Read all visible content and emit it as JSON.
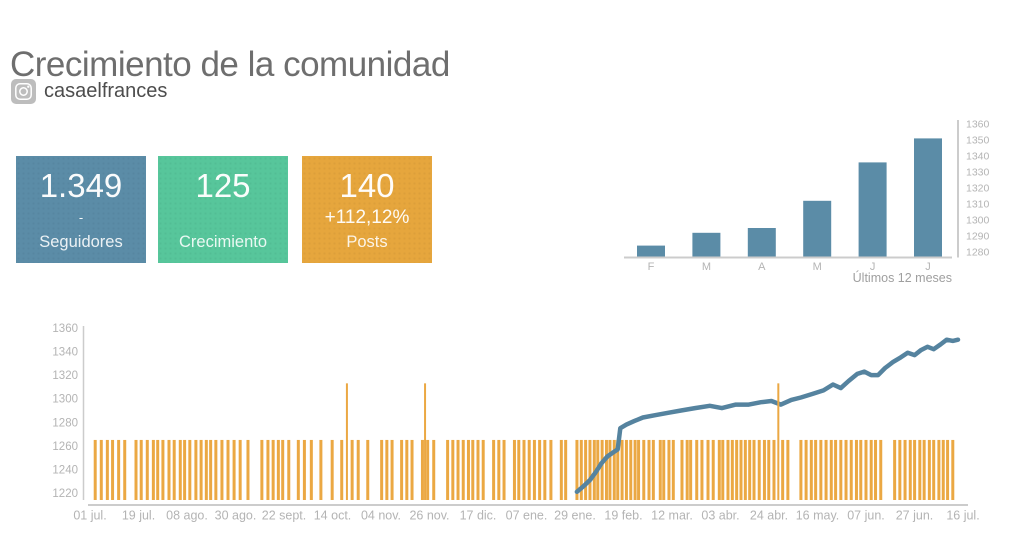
{
  "header": {
    "title": "Crecimiento de la comunidad",
    "account": "casaelfrances"
  },
  "stats": [
    {
      "value": "1.349",
      "sub": "-",
      "label": "Seguidores",
      "color": "#5b8ca7"
    },
    {
      "value": "125",
      "sub": "",
      "label": "Crecimiento",
      "color": "#57c69b"
    },
    {
      "value": "140",
      "sub": "+112,12%",
      "label": "Posts",
      "color": "#e6a63d"
    }
  ],
  "colors": {
    "bar_blue": "#5b8ca7",
    "line_blue": "#55839f",
    "post_orange": "#eba843",
    "axis_gray": "#cccccc",
    "tick_text": "#b4b4b4",
    "footer_text": "#9f9f9f"
  },
  "chart_data": [
    {
      "id": "monthly_followers",
      "type": "bar",
      "title": "Últimos 12 meses",
      "categories": [
        "F",
        "M",
        "A",
        "M",
        "J",
        "J"
      ],
      "values": [
        1284,
        1292,
        1295,
        1312,
        1336,
        1351
      ],
      "ylim": [
        1280,
        1360
      ],
      "yticks": [
        1280,
        1290,
        1300,
        1310,
        1320,
        1330,
        1340,
        1350,
        1360
      ],
      "axis_side": "right",
      "grid": false,
      "bar_color": "#5b8ca7"
    },
    {
      "id": "followers_and_posts_daily",
      "type": "mixed",
      "xticklabels": [
        "01 jul.",
        "19 jul.",
        "08 ago.",
        "30 ago.",
        "22 sept.",
        "14 oct.",
        "04 nov.",
        "26 nov.",
        "17 dic.",
        "07 ene.",
        "29 ene.",
        "19 feb.",
        "12 mar.",
        "03 abr.",
        "24 abr.",
        "16 may.",
        "07 jun.",
        "27 jun.",
        "16 jul."
      ],
      "ylim": [
        1220,
        1360
      ],
      "yticks": [
        1220,
        1240,
        1260,
        1280,
        1300,
        1320,
        1340,
        1360
      ],
      "grid": false,
      "series": [
        {
          "name": "Seguidores",
          "type": "line",
          "color": "#55839f",
          "points": [
            [
              0.561,
              1221
            ],
            [
              0.569,
              1226
            ],
            [
              0.576,
              1231
            ],
            [
              0.583,
              1238
            ],
            [
              0.589,
              1245
            ],
            [
              0.596,
              1251
            ],
            [
              0.602,
              1254
            ],
            [
              0.608,
              1257
            ],
            [
              0.611,
              1275
            ],
            [
              0.618,
              1278
            ],
            [
              0.627,
              1281
            ],
            [
              0.637,
              1284
            ],
            [
              0.651,
              1286
            ],
            [
              0.666,
              1288
            ],
            [
              0.681,
              1290
            ],
            [
              0.697,
              1292
            ],
            [
              0.714,
              1294
            ],
            [
              0.728,
              1292
            ],
            [
              0.744,
              1295
            ],
            [
              0.759,
              1295
            ],
            [
              0.773,
              1297
            ],
            [
              0.785,
              1298
            ],
            [
              0.796,
              1295
            ],
            [
              0.808,
              1299
            ],
            [
              0.819,
              1301
            ],
            [
              0.832,
              1304
            ],
            [
              0.845,
              1307
            ],
            [
              0.856,
              1312
            ],
            [
              0.865,
              1309
            ],
            [
              0.874,
              1315
            ],
            [
              0.884,
              1321
            ],
            [
              0.892,
              1323
            ],
            [
              0.9,
              1320
            ],
            [
              0.908,
              1320
            ],
            [
              0.916,
              1326
            ],
            [
              0.925,
              1331
            ],
            [
              0.934,
              1335
            ],
            [
              0.942,
              1339
            ],
            [
              0.95,
              1337
            ],
            [
              0.957,
              1341
            ],
            [
              0.965,
              1344
            ],
            [
              0.972,
              1342
            ],
            [
              0.98,
              1346
            ],
            [
              0.987,
              1350
            ],
            [
              0.994,
              1349
            ],
            [
              1.0,
              1350
            ]
          ]
        },
        {
          "name": "Posts",
          "type": "bar",
          "color": "#eba843",
          "baseline": 1220,
          "bar_value": 1265,
          "spike_value": 1313,
          "spikes": [
            0.296,
            0.386,
            0.793
          ],
          "positions": [
            0.006,
            0.013,
            0.02,
            0.026,
            0.033,
            0.04,
            0.053,
            0.059,
            0.066,
            0.073,
            0.078,
            0.084,
            0.091,
            0.097,
            0.104,
            0.109,
            0.115,
            0.122,
            0.128,
            0.134,
            0.139,
            0.145,
            0.152,
            0.159,
            0.166,
            0.173,
            0.182,
            0.198,
            0.205,
            0.211,
            0.217,
            0.222,
            0.229,
            0.24,
            0.247,
            0.255,
            0.266,
            0.279,
            0.29,
            0.302,
            0.309,
            0.32,
            0.336,
            0.342,
            0.348,
            0.359,
            0.365,
            0.371,
            0.383,
            0.389,
            0.396,
            0.412,
            0.418,
            0.424,
            0.43,
            0.436,
            0.441,
            0.447,
            0.453,
            0.465,
            0.471,
            0.477,
            0.489,
            0.494,
            0.5,
            0.506,
            0.512,
            0.518,
            0.524,
            0.531,
            0.543,
            0.548,
            0.561,
            0.566,
            0.571,
            0.576,
            0.581,
            0.585,
            0.59,
            0.595,
            0.599,
            0.604,
            0.608,
            0.613,
            0.618,
            0.623,
            0.628,
            0.632,
            0.638,
            0.644,
            0.649,
            0.657,
            0.661,
            0.667,
            0.672,
            0.682,
            0.688,
            0.692,
            0.699,
            0.705,
            0.712,
            0.718,
            0.725,
            0.729,
            0.735,
            0.74,
            0.745,
            0.75,
            0.755,
            0.76,
            0.765,
            0.771,
            0.777,
            0.782,
            0.788,
            0.798,
            0.804,
            0.819,
            0.825,
            0.831,
            0.836,
            0.842,
            0.848,
            0.854,
            0.859,
            0.865,
            0.871,
            0.877,
            0.883,
            0.888,
            0.894,
            0.9,
            0.905,
            0.911,
            0.927,
            0.933,
            0.939,
            0.945,
            0.95,
            0.956,
            0.961,
            0.967,
            0.972,
            0.978,
            0.983,
            0.988,
            0.994
          ]
        }
      ]
    }
  ]
}
